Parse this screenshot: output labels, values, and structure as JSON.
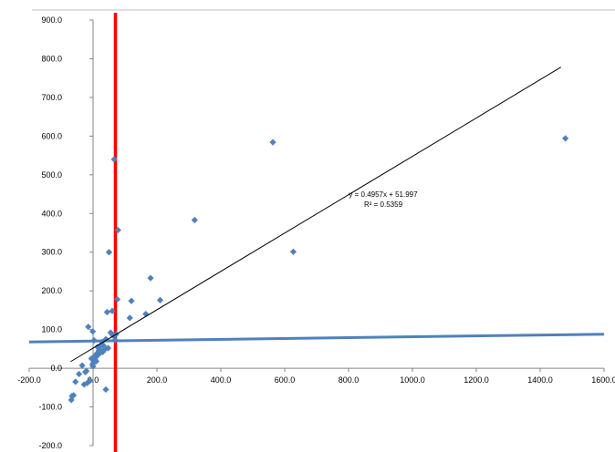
{
  "chart_data": {
    "type": "scatter",
    "title": "",
    "xlabel": "",
    "ylabel": "",
    "xlim": [
      -200,
      1600
    ],
    "ylim": [
      -200,
      900
    ],
    "x_ticks": [
      -200,
      0,
      200,
      400,
      600,
      800,
      1000,
      1200,
      1400,
      1600
    ],
    "y_ticks": [
      -200,
      -100,
      0,
      100,
      200,
      300,
      400,
      500,
      600,
      700,
      800,
      900
    ],
    "x_tick_labels": [
      "-200.0",
      "0.0",
      "200.0",
      "400.0",
      "600.0",
      "800.0",
      "1000.0",
      "1200.0",
      "1400.0",
      "1600.0"
    ],
    "y_tick_labels": [
      "-200.0",
      "-100.0",
      "0.0",
      "100.0",
      "200.0",
      "300.0",
      "400.0",
      "500.0",
      "600.0",
      "700.0",
      "800.0",
      "900.0"
    ],
    "grid": false,
    "series": [
      {
        "marker": "diamond",
        "color": "#4f81bd",
        "points": [
          [
            -68,
            -82
          ],
          [
            -66,
            -72
          ],
          [
            -61,
            -70
          ],
          [
            -55,
            -35
          ],
          [
            -44,
            -15
          ],
          [
            -34,
            7
          ],
          [
            -28,
            -42
          ],
          [
            -24,
            -10
          ],
          [
            -21,
            -7
          ],
          [
            -15,
            107
          ],
          [
            -9,
            -32
          ],
          [
            -5,
            25
          ],
          [
            -2,
            10
          ],
          [
            0,
            5
          ],
          [
            2,
            15
          ],
          [
            4,
            30
          ],
          [
            6,
            22
          ],
          [
            8,
            28
          ],
          [
            10,
            18
          ],
          [
            12,
            38
          ],
          [
            14,
            55
          ],
          [
            16,
            35
          ],
          [
            18,
            45
          ],
          [
            20,
            50
          ],
          [
            22,
            40
          ],
          [
            25,
            60
          ],
          [
            28,
            68
          ],
          [
            30,
            42
          ],
          [
            33,
            58
          ],
          [
            36,
            48
          ],
          [
            40,
            75
          ],
          [
            44,
            145
          ],
          [
            47,
            52
          ],
          [
            50,
            300
          ],
          [
            55,
            92
          ],
          [
            60,
            148
          ],
          [
            62,
            85
          ],
          [
            66,
            540
          ],
          [
            69,
            73
          ],
          [
            72,
            88
          ],
          [
            76,
            178
          ],
          [
            78,
            357
          ],
          [
            115,
            130
          ],
          [
            120,
            174
          ],
          [
            165,
            140
          ],
          [
            180,
            233
          ],
          [
            210,
            176
          ],
          [
            318,
            383
          ],
          [
            563,
            584
          ],
          [
            627,
            301
          ],
          [
            1479,
            594
          ],
          [
            -1,
            95
          ],
          [
            40,
            -55
          ],
          [
            3,
            72
          ],
          [
            -18,
            -38
          ]
        ]
      }
    ],
    "trendline": {
      "equation": "y = 0.4957x + 51.997",
      "r_squared": "R² = 0.5359",
      "slope": 0.4957,
      "intercept": 51.997,
      "x_start": -70,
      "x_end": 1465,
      "color": "#000000"
    },
    "reference_lines": [
      {
        "orientation": "vertical",
        "x": 70,
        "color": "#ff0000"
      },
      {
        "orientation": "sloped",
        "x_from": -200,
        "y_from": 68,
        "x_to": 1600,
        "y_to": 88,
        "color": "#4f81bd"
      }
    ]
  }
}
